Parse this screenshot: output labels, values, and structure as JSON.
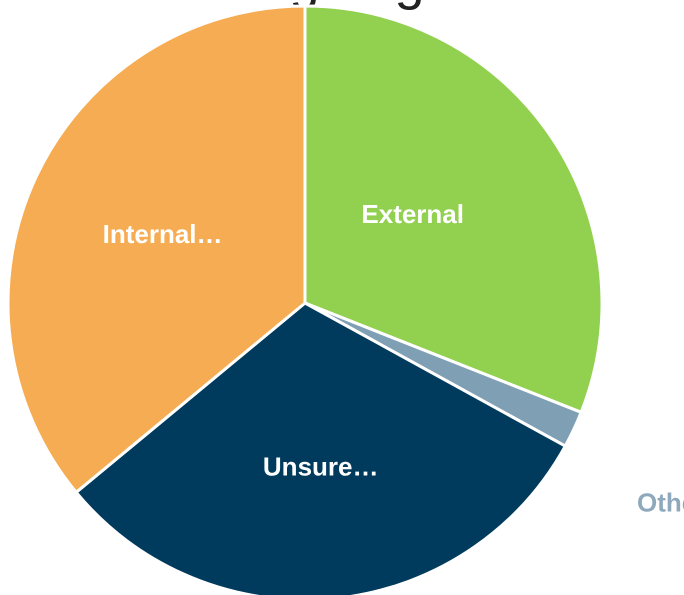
{
  "chart_data": {
    "type": "pie",
    "title": "...ng ... g...",
    "slices": [
      {
        "label": "External",
        "value": 31,
        "color": "#92d050",
        "label_color": "#ffffff"
      },
      {
        "label": "Other",
        "value": 2,
        "color": "#7f9fb4",
        "label_color": "#8fa9bc"
      },
      {
        "label": "Unsure…",
        "value": 31,
        "color": "#003a5c",
        "label_color": "#ffffff"
      },
      {
        "label": "Internal…",
        "value": 36,
        "color": "#f6ac52",
        "label_color": "#ffffff"
      }
    ],
    "start_angle_deg": 0,
    "direction": "clockwise",
    "legend": "none"
  }
}
